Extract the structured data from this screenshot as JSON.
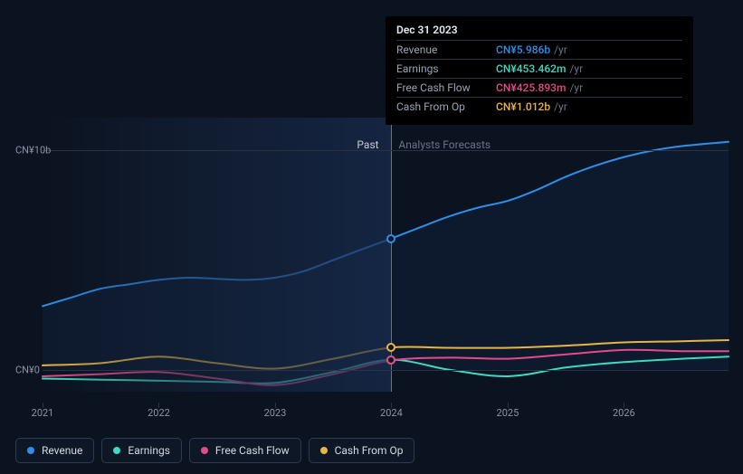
{
  "chart": {
    "background_color": "#0b1320",
    "grid_color": "#2a3344",
    "y_axis": {
      "labels": [
        "CN¥10b",
        "CN¥0"
      ],
      "values": [
        10,
        0
      ],
      "min": -1,
      "max": 11.5,
      "gridlines_at": [
        10,
        0
      ],
      "font_color": "#8b93a5",
      "font_size": 11
    },
    "x_axis": {
      "labels": [
        "2021",
        "2022",
        "2023",
        "2024",
        "2025",
        "2026"
      ],
      "positions": [
        2021,
        2022,
        2023,
        2024,
        2025,
        2026
      ],
      "min": 2021,
      "max": 2026.9,
      "font_color": "#8b93a5",
      "font_size": 11
    },
    "vline_at": 2024,
    "past_label": "Past",
    "forecast_label": "Analysts Forecasts",
    "series": [
      {
        "key": "revenue",
        "label": "Revenue",
        "color": "#2f8fe8",
        "line_width": 2,
        "area_fill": "rgba(47,143,232,0.06)",
        "data": [
          [
            2021,
            2.9
          ],
          [
            2021.25,
            3.3
          ],
          [
            2021.5,
            3.7
          ],
          [
            2021.75,
            3.9
          ],
          [
            2022,
            4.1
          ],
          [
            2022.25,
            4.2
          ],
          [
            2022.5,
            4.15
          ],
          [
            2022.75,
            4.1
          ],
          [
            2023,
            4.2
          ],
          [
            2023.25,
            4.5
          ],
          [
            2023.5,
            5.0
          ],
          [
            2023.75,
            5.5
          ],
          [
            2024,
            5.986
          ],
          [
            2024.25,
            6.5
          ],
          [
            2024.5,
            7.0
          ],
          [
            2024.75,
            7.4
          ],
          [
            2025,
            7.7
          ],
          [
            2025.25,
            8.2
          ],
          [
            2025.5,
            8.8
          ],
          [
            2025.75,
            9.3
          ],
          [
            2026,
            9.7
          ],
          [
            2026.25,
            10.0
          ],
          [
            2026.5,
            10.2
          ],
          [
            2026.9,
            10.4
          ]
        ]
      },
      {
        "key": "earnings",
        "label": "Earnings",
        "color": "#3dd9c1",
        "line_width": 2,
        "area_fill": "none",
        "data": [
          [
            2021,
            -0.4
          ],
          [
            2021.5,
            -0.45
          ],
          [
            2022,
            -0.5
          ],
          [
            2022.5,
            -0.55
          ],
          [
            2023,
            -0.6
          ],
          [
            2023.5,
            -0.1
          ],
          [
            2024,
            0.453
          ],
          [
            2024.5,
            0.0
          ],
          [
            2025,
            -0.3
          ],
          [
            2025.5,
            0.1
          ],
          [
            2026,
            0.35
          ],
          [
            2026.5,
            0.5
          ],
          [
            2026.9,
            0.6
          ]
        ]
      },
      {
        "key": "fcf",
        "label": "Free Cash Flow",
        "color": "#e34b8a",
        "line_width": 2,
        "area_fill": "none",
        "data": [
          [
            2021,
            -0.3
          ],
          [
            2021.5,
            -0.2
          ],
          [
            2022,
            -0.1
          ],
          [
            2022.5,
            -0.4
          ],
          [
            2023,
            -0.7
          ],
          [
            2023.5,
            -0.2
          ],
          [
            2024,
            0.426
          ],
          [
            2024.5,
            0.55
          ],
          [
            2025,
            0.5
          ],
          [
            2025.5,
            0.7
          ],
          [
            2026,
            0.9
          ],
          [
            2026.5,
            0.85
          ],
          [
            2026.9,
            0.85
          ]
        ]
      },
      {
        "key": "cfo",
        "label": "Cash From Op",
        "color": "#e8b543",
        "line_width": 2,
        "area_fill": "none",
        "data": [
          [
            2021,
            0.2
          ],
          [
            2021.5,
            0.3
          ],
          [
            2022,
            0.6
          ],
          [
            2022.5,
            0.3
          ],
          [
            2023,
            0.05
          ],
          [
            2023.5,
            0.5
          ],
          [
            2024,
            1.012
          ],
          [
            2024.5,
            1.0
          ],
          [
            2025,
            1.0
          ],
          [
            2025.5,
            1.1
          ],
          [
            2026,
            1.25
          ],
          [
            2026.5,
            1.3
          ],
          [
            2026.9,
            1.35
          ]
        ]
      }
    ],
    "marker_outline_bg": "#0b1320"
  },
  "tooltip": {
    "date": "Dec 31 2023",
    "unit": "/yr",
    "rows": [
      {
        "label": "Revenue",
        "value": "CN¥5.986b",
        "color": "#2f8fe8"
      },
      {
        "label": "Earnings",
        "value": "CN¥453.462m",
        "color": "#3dd9c1"
      },
      {
        "label": "Free Cash Flow",
        "value": "CN¥425.893m",
        "color": "#e34b8a"
      },
      {
        "label": "Cash From Op",
        "value": "CN¥1.012b",
        "color": "#e8b543"
      }
    ]
  },
  "legend": {
    "items": [
      {
        "label": "Revenue",
        "color": "#2f8fe8"
      },
      {
        "label": "Earnings",
        "color": "#3dd9c1"
      },
      {
        "label": "Free Cash Flow",
        "color": "#e34b8a"
      },
      {
        "label": "Cash From Op",
        "color": "#e8b543"
      }
    ],
    "text_color": "#d3d9e5",
    "border_color": "#2f3a4e"
  }
}
